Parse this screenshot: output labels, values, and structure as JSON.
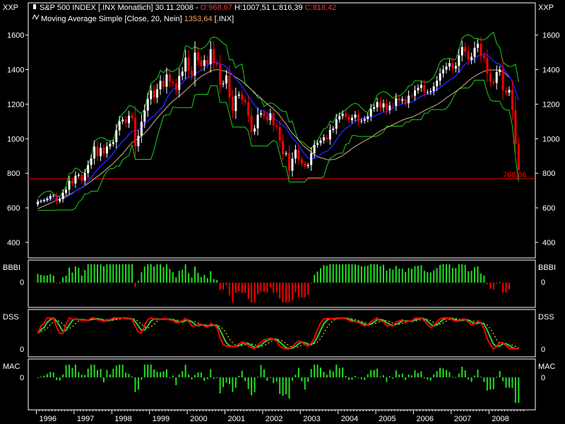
{
  "header": {
    "symbol_text": "S&P 500 INDEX [.INX  Monatlich] 30.11.2008 - ",
    "open_text": "O:968,67",
    "hl_text": " H:1007,51 L:816,39 ",
    "close_text": "C:818,42",
    "ma_text": "Moving Average Simple [Close, 20, Nein] ",
    "ma_value_text": "1353,64",
    "ma_suffix_text": " [.INX]"
  },
  "panels": {
    "price_label": "XXP",
    "bbbi_label": "BBBI",
    "dss_label": "DSS",
    "mac_label": "MAC",
    "zero_label": "0"
  },
  "colors": {
    "background": "#000000",
    "frame": "#ffffff",
    "up_candle": "#ffffff",
    "down_candle": "#ff0000",
    "ma20": "#d2b48c",
    "ma_blue": "#2020ff",
    "envelope": "#22cc22",
    "support": "#ff0000",
    "hist_pos": "#22dd22",
    "hist_neg": "#ff0000",
    "dss_fast": "#ff0000",
    "dss_slow": "#33cc33",
    "dss_signal": "#dddd33"
  },
  "chart_data": {
    "type": "candlestick",
    "series_name": "S&P 500 INDEX [.INX Monatlich]",
    "x_ticks": [
      "1996",
      "1997",
      "1998",
      "1999",
      "2000",
      "2001",
      "2002",
      "2003",
      "2004",
      "2005",
      "2006",
      "2007",
      "2008"
    ],
    "y_ticks": [
      400,
      600,
      800,
      1000,
      1200,
      1400,
      1600
    ],
    "ylim": [
      320,
      1640
    ],
    "support_level": 768,
    "support_label": "768,86",
    "last_bar": {
      "date": "30.11.2008",
      "open": 968.67,
      "high": 1007.51,
      "low": 816.39,
      "close": 818.42
    },
    "ma_last": 1353.64,
    "monthly_close": [
      636,
      640,
      645,
      654,
      669,
      671,
      639,
      651,
      687,
      705,
      757,
      741,
      786,
      791,
      757,
      801,
      848,
      885,
      954,
      899,
      947,
      915,
      955,
      970,
      980,
      1049,
      1101,
      1111,
      1090,
      1133,
      1120,
      957,
      1017,
      1098,
      1163,
      1229,
      1279,
      1238,
      1286,
      1335,
      1301,
      1372,
      1329,
      1320,
      1283,
      1363,
      1389,
      1469,
      1394,
      1366,
      1499,
      1452,
      1421,
      1455,
      1431,
      1518,
      1437,
      1429,
      1315,
      1320,
      1366,
      1240,
      1160,
      1249,
      1256,
      1224,
      1211,
      1134,
      1041,
      1060,
      1139,
      1148,
      1130,
      1107,
      1147,
      1076,
      1067,
      989,
      911,
      916,
      815,
      885,
      936,
      880,
      856,
      841,
      848,
      916,
      964,
      975,
      990,
      1008,
      996,
      1051,
      1058,
      1112,
      1131,
      1145,
      1126,
      1107,
      1121,
      1140,
      1101,
      1104,
      1114,
      1130,
      1173,
      1182,
      1212,
      1181,
      1204,
      1166,
      1192,
      1191,
      1234,
      1220,
      1228,
      1207,
      1249,
      1248,
      1280,
      1294,
      1311,
      1270,
      1270,
      1276,
      1303,
      1336,
      1378,
      1400,
      1418,
      1438,
      1406,
      1421,
      1482,
      1531,
      1503,
      1455,
      1474,
      1526,
      1549,
      1481,
      1468,
      1378,
      1330,
      1323,
      1386,
      1400,
      1280,
      1267,
      1282,
      1166,
      968,
      818
    ],
    "monthly_ma20": [
      595,
      603,
      611,
      619,
      627,
      636,
      643,
      651,
      659,
      668,
      677,
      686,
      697,
      708,
      717,
      728,
      741,
      754,
      768,
      781,
      796,
      810,
      826,
      841,
      857,
      876,
      895,
      913,
      935,
      957,
      978,
      989,
      1001,
      1015,
      1032,
      1051,
      1074,
      1098,
      1120,
      1141,
      1159,
      1181,
      1200,
      1218,
      1232,
      1247,
      1262,
      1278,
      1296,
      1313,
      1330,
      1347,
      1361,
      1371,
      1381,
      1392,
      1397,
      1400,
      1397,
      1393,
      1390,
      1378,
      1368,
      1355,
      1345,
      1332,
      1318,
      1301,
      1283,
      1262,
      1250,
      1235,
      1217,
      1200,
      1188,
      1170,
      1155,
      1133,
      1108,
      1085,
      1057,
      1032,
      1013,
      991,
      970,
      951,
      937,
      922,
      908,
      897,
      889,
      885,
      879,
      878,
      880,
      884,
      893,
      903,
      916,
      929,
      943,
      955,
      966,
      978,
      988,
      998,
      1007,
      1020,
      1033,
      1045,
      1055,
      1064,
      1072,
      1081,
      1090,
      1099,
      1107,
      1114,
      1120,
      1125,
      1133,
      1142,
      1152,
      1162,
      1172,
      1180,
      1188,
      1198,
      1209,
      1222,
      1236,
      1249,
      1261,
      1274,
      1287,
      1302,
      1318,
      1334,
      1349,
      1361,
      1372,
      1382,
      1390,
      1396,
      1398,
      1398,
      1398,
      1395,
      1388,
      1374,
      1354
    ]
  }
}
